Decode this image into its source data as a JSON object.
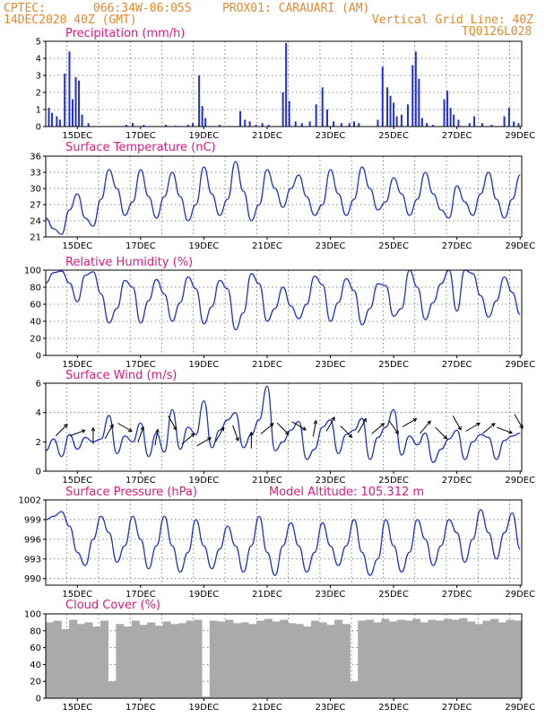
{
  "header": {
    "source": "CPTEC:",
    "coords": "066:34W-06:05S",
    "location": "PROX01: CARAUARI (AM)",
    "date": "14DEC2020 40Z (GMT)",
    "grid_note": "Vertical Grid Line: 40Z",
    "model": "TQ0126L028"
  },
  "x_ticks": [
    "15DEC",
    "17DEC",
    "19DEC",
    "21DEC",
    "23DEC",
    "25DEC",
    "27DEC",
    "29DEC"
  ],
  "colors": {
    "line": "#2233cc",
    "bar": "#1f2fe0",
    "cloud": "#aaaaaa",
    "arrow": "#000000"
  },
  "chart_data": [
    {
      "type": "bar",
      "title": "Precipitation (mm/h)",
      "x_unit": "day of month (14.0 = 14DEC 00Z)",
      "ylim": [
        0,
        5
      ],
      "yticks": [
        0,
        1,
        2,
        3,
        4,
        5
      ],
      "series": [
        {
          "x": [
            14.1,
            14.2,
            14.35,
            14.45,
            14.6,
            14.75,
            14.85,
            14.95,
            15.05,
            15.15,
            15.35,
            16.55,
            16.75,
            17.1,
            17.8,
            18.1,
            18.5,
            18.65,
            18.85,
            18.95,
            19.05,
            19.5,
            20.15,
            20.3,
            20.45,
            20.65,
            20.85,
            21.05,
            21.5,
            21.6,
            21.7,
            21.9,
            22.1,
            22.35,
            22.55,
            22.75,
            22.9,
            23.1,
            23.35,
            23.6,
            23.75,
            23.9,
            24.5,
            24.65,
            24.8,
            24.9,
            25.0,
            25.1,
            25.25,
            25.45,
            25.6,
            25.7,
            25.8,
            25.9,
            26.05,
            26.25,
            26.6,
            26.7,
            26.8,
            26.9,
            27.05,
            27.4,
            27.55,
            27.8,
            28.1,
            28.5,
            28.65,
            28.8,
            28.95
          ],
          "y": [
            1.1,
            0.8,
            0.6,
            0.4,
            3.1,
            4.4,
            1.6,
            2.9,
            2.7,
            0.7,
            0.2,
            0.1,
            0.2,
            0.1,
            0.1,
            0.05,
            0.1,
            0.2,
            3.0,
            1.2,
            0.5,
            0.1,
            0.9,
            0.4,
            0.3,
            0.1,
            0.2,
            0.1,
            2.0,
            4.9,
            1.5,
            0.3,
            0.2,
            0.3,
            1.3,
            2.3,
            1.0,
            0.3,
            0.2,
            0.2,
            0.3,
            0.2,
            0.4,
            3.5,
            2.3,
            1.8,
            1.4,
            0.6,
            0.7,
            1.3,
            3.6,
            4.4,
            2.8,
            0.5,
            0.2,
            0.1,
            1.6,
            2.1,
            1.1,
            0.7,
            0.4,
            0.2,
            0.6,
            0.2,
            0.1,
            0.6,
            1.1,
            0.3,
            0.2
          ]
        }
      ]
    },
    {
      "type": "line",
      "title": "Surface Temperature (nC)",
      "ylim": [
        21,
        36
      ],
      "yticks": [
        21,
        24,
        27,
        30,
        33,
        36
      ],
      "series": [
        {
          "x": [
            14.0,
            14.25,
            14.5,
            14.75,
            15.0,
            15.25,
            15.5,
            15.75,
            16.0,
            16.25,
            16.5,
            16.75,
            17.0,
            17.25,
            17.5,
            17.75,
            18.0,
            18.25,
            18.5,
            18.75,
            19.0,
            19.25,
            19.5,
            19.75,
            20.0,
            20.25,
            20.5,
            20.75,
            21.0,
            21.25,
            21.5,
            21.75,
            22.0,
            22.25,
            22.5,
            22.75,
            23.0,
            23.25,
            23.5,
            23.75,
            24.0,
            24.25,
            24.5,
            24.75,
            25.0,
            25.25,
            25.5,
            25.75,
            26.0,
            26.25,
            26.5,
            26.75,
            27.0,
            27.25,
            27.5,
            27.75,
            28.0,
            28.25,
            28.5,
            28.75,
            29.0
          ],
          "y": [
            24.5,
            22.5,
            21.5,
            26.0,
            29.0,
            24.5,
            23.0,
            28.0,
            33.5,
            30.0,
            25.0,
            27.5,
            33.5,
            28.5,
            24.5,
            28.5,
            33.0,
            28.5,
            24.0,
            27.0,
            34.0,
            29.0,
            25.0,
            28.0,
            35.0,
            29.5,
            24.0,
            27.0,
            33.5,
            30.0,
            26.5,
            30.0,
            32.5,
            28.5,
            25.0,
            27.0,
            33.5,
            29.0,
            25.0,
            28.0,
            34.0,
            30.0,
            26.0,
            27.5,
            32.0,
            29.0,
            25.0,
            28.0,
            33.0,
            29.0,
            26.0,
            24.5,
            30.5,
            27.5,
            25.0,
            29.0,
            33.0,
            28.0,
            24.5,
            28.0,
            32.5
          ]
        }
      ]
    },
    {
      "type": "line",
      "title": "Relative Humidity (%)",
      "ylim": [
        0,
        100
      ],
      "yticks": [
        0,
        20,
        40,
        60,
        80,
        100
      ],
      "series": [
        {
          "x": [
            14.0,
            14.25,
            14.5,
            14.75,
            15.0,
            15.25,
            15.5,
            15.75,
            16.0,
            16.25,
            16.5,
            16.75,
            17.0,
            17.25,
            17.5,
            17.75,
            18.0,
            18.25,
            18.5,
            18.75,
            19.0,
            19.25,
            19.5,
            19.75,
            20.0,
            20.25,
            20.5,
            20.75,
            21.0,
            21.25,
            21.5,
            21.75,
            22.0,
            22.25,
            22.5,
            22.75,
            23.0,
            23.25,
            23.5,
            23.75,
            24.0,
            24.25,
            24.5,
            24.75,
            25.0,
            25.25,
            25.5,
            25.75,
            26.0,
            26.25,
            26.5,
            26.75,
            27.0,
            27.25,
            27.5,
            27.75,
            28.0,
            28.25,
            28.5,
            28.75,
            29.0
          ],
          "y": [
            85,
            97,
            99,
            85,
            63,
            94,
            98,
            72,
            38,
            55,
            88,
            80,
            38,
            64,
            89,
            72,
            40,
            62,
            92,
            78,
            37,
            57,
            88,
            78,
            30,
            50,
            96,
            84,
            40,
            55,
            80,
            58,
            43,
            60,
            93,
            83,
            40,
            62,
            90,
            76,
            36,
            55,
            84,
            82,
            46,
            55,
            100,
            80,
            42,
            62,
            84,
            100,
            52,
            100,
            96,
            70,
            45,
            64,
            92,
            74,
            48
          ]
        }
      ]
    },
    {
      "type": "line",
      "title": "Surface Wind (m/s)",
      "ylim": [
        0,
        6
      ],
      "yticks": [
        0,
        2,
        4,
        6
      ],
      "series": [
        {
          "x": [
            14.0,
            14.25,
            14.5,
            14.75,
            15.0,
            15.25,
            15.5,
            15.75,
            16.0,
            16.25,
            16.5,
            16.75,
            17.0,
            17.25,
            17.5,
            17.75,
            18.0,
            18.25,
            18.5,
            18.75,
            19.0,
            19.25,
            19.5,
            19.75,
            20.0,
            20.25,
            20.5,
            20.75,
            21.0,
            21.25,
            21.5,
            21.75,
            22.0,
            22.25,
            22.5,
            22.75,
            23.0,
            23.25,
            23.5,
            23.75,
            24.0,
            24.25,
            24.5,
            24.75,
            25.0,
            25.25,
            25.5,
            25.75,
            26.0,
            26.25,
            26.5,
            26.75,
            27.0,
            27.25,
            27.5,
            27.75,
            28.0,
            28.25,
            28.5,
            28.75,
            29.0
          ],
          "y": [
            1.4,
            2.2,
            1.0,
            2.5,
            1.5,
            2.3,
            2.0,
            2.2,
            3.8,
            1.2,
            2.4,
            2.0,
            3.3,
            1.0,
            2.6,
            1.3,
            4.2,
            1.5,
            3.0,
            2.5,
            4.8,
            1.6,
            2.8,
            3.5,
            4.0,
            1.6,
            2.5,
            3.5,
            5.8,
            1.4,
            2.0,
            2.8,
            3.4,
            0.8,
            1.5,
            3.0,
            3.5,
            1.2,
            2.5,
            2.8,
            3.6,
            0.8,
            2.3,
            3.0,
            4.2,
            1.1,
            2.4,
            1.8,
            2.6,
            0.6,
            1.5,
            2.2,
            2.8,
            0.8,
            2.0,
            2.5,
            2.3,
            0.8,
            2.1,
            2.4,
            2.6
          ]
        }
      ],
      "wind_arrows": {
        "x": [
          14.5,
          15.0,
          15.5,
          16.0,
          16.5,
          17.0,
          17.5,
          18.0,
          18.5,
          19.0,
          19.5,
          20.0,
          20.5,
          21.0,
          21.5,
          22.0,
          22.5,
          23.0,
          23.5,
          24.0,
          24.5,
          25.0,
          25.5,
          26.0,
          26.5,
          27.0,
          27.5,
          28.0,
          28.5,
          28.95
        ],
        "y": [
          2.8,
          2.6,
          2.4,
          2.7,
          3.0,
          2.5,
          2.3,
          3.3,
          2.2,
          2.0,
          2.5,
          2.6,
          2.1,
          2.9,
          2.9,
          3.1,
          2.9,
          3.2,
          2.7,
          3.1,
          2.9,
          3.0,
          3.3,
          3.0,
          2.6,
          3.3,
          3.0,
          2.9,
          2.8,
          3.4
        ],
        "dir": [
          45,
          20,
          90,
          60,
          -30,
          70,
          80,
          -60,
          40,
          30,
          60,
          -70,
          90,
          40,
          -45,
          -30,
          80,
          60,
          -45,
          60,
          40,
          -55,
          30,
          50,
          -45,
          -60,
          30,
          40,
          -20,
          -60
        ]
      }
    },
    {
      "type": "line",
      "title": "Surface Pressure (hPa)",
      "annotation": "Model Altitude: 105.312 m",
      "ylim": [
        989,
        1002
      ],
      "yticks": [
        990,
        993,
        996,
        999,
        1002
      ],
      "series": [
        {
          "x": [
            14.0,
            14.25,
            14.5,
            14.75,
            15.0,
            15.25,
            15.5,
            15.75,
            16.0,
            16.25,
            16.5,
            16.75,
            17.0,
            17.25,
            17.5,
            17.75,
            18.0,
            18.25,
            18.5,
            18.75,
            19.0,
            19.25,
            19.5,
            19.75,
            20.0,
            20.25,
            20.5,
            20.75,
            21.0,
            21.25,
            21.5,
            21.75,
            22.0,
            22.25,
            22.5,
            22.75,
            23.0,
            23.25,
            23.5,
            23.75,
            24.0,
            24.25,
            24.5,
            24.75,
            25.0,
            25.25,
            25.5,
            25.75,
            26.0,
            26.25,
            26.5,
            26.75,
            27.0,
            27.25,
            27.5,
            27.75,
            28.0,
            28.25,
            28.5,
            28.75,
            29.0
          ],
          "y": [
            999,
            999.5,
            1000.2,
            998,
            994,
            992,
            996,
            999.5,
            997,
            992.5,
            995,
            999.5,
            996,
            991.5,
            995,
            999.5,
            995,
            991,
            994,
            999,
            995,
            991.5,
            994.5,
            998,
            995,
            991,
            995,
            999.5,
            994,
            990.5,
            995,
            998.5,
            995,
            991,
            994,
            998.5,
            995,
            992,
            995,
            999,
            994,
            990.5,
            993,
            999,
            995,
            991,
            994,
            999,
            996,
            992,
            995,
            999,
            997,
            992.5,
            996,
            1000.5,
            997,
            993,
            997,
            1000,
            994.5
          ]
        }
      ]
    },
    {
      "type": "bar",
      "title": "Cloud Cover (%)",
      "ylim": [
        0,
        100
      ],
      "yticks": [
        0,
        20,
        40,
        60,
        80,
        100
      ],
      "series": [
        {
          "x": [
            14.0,
            14.25,
            14.5,
            14.75,
            15.0,
            15.25,
            15.5,
            15.75,
            16.0,
            16.25,
            16.5,
            16.75,
            17.0,
            17.25,
            17.5,
            17.75,
            18.0,
            18.25,
            18.5,
            18.75,
            19.0,
            19.25,
            19.5,
            19.75,
            20.0,
            20.25,
            20.5,
            20.75,
            21.0,
            21.25,
            21.5,
            21.75,
            22.0,
            22.25,
            22.5,
            22.75,
            23.0,
            23.25,
            23.5,
            23.75,
            24.0,
            24.25,
            24.5,
            24.75,
            25.0,
            25.25,
            25.5,
            25.75,
            26.0,
            26.25,
            26.5,
            26.75,
            27.0,
            27.25,
            27.5,
            27.75,
            28.0,
            28.25,
            28.5,
            28.75,
            29.0
          ],
          "y": [
            90,
            92,
            82,
            93,
            88,
            90,
            85,
            92,
            20,
            88,
            85,
            92,
            87,
            90,
            86,
            91,
            88,
            89,
            92,
            93,
            2,
            92,
            91,
            93,
            89,
            90,
            88,
            92,
            94,
            91,
            93,
            89,
            88,
            85,
            92,
            90,
            87,
            93,
            88,
            20,
            92,
            93,
            90,
            94,
            91,
            93,
            92,
            94,
            90,
            93,
            92,
            94,
            93,
            95,
            91,
            88,
            92,
            94,
            90,
            93,
            92
          ]
        }
      ]
    }
  ]
}
